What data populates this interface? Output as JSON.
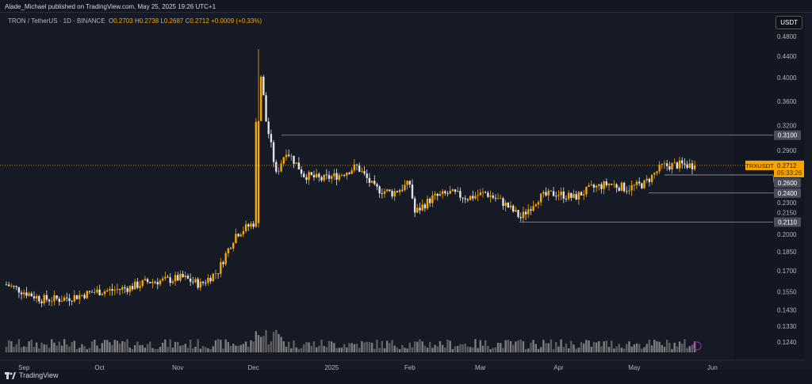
{
  "header": {
    "published": "Alade_Michael published on TradingView.com, May 25, 2025 19:26 UTC+1"
  },
  "legend": {
    "symbol": "TRON / TetherUS · 1D · BINANCE",
    "o_label": "O",
    "o": "0.2703",
    "h_label": "H",
    "h": "0.2738",
    "l_label": "L",
    "l": "0.2687",
    "c_label": "C",
    "c": "0.2712",
    "change": "+0.0009 (+0.33%)"
  },
  "currency": "USDT",
  "price_tag": {
    "symbol": "TRXUSDT",
    "price": "0.2712",
    "countdown": "05:33:26"
  },
  "colors": {
    "up": "#f7a600",
    "down": "#e0e3eb",
    "accent": "#f7a600",
    "level": "#787b86"
  },
  "chart_data": {
    "type": "candlestick",
    "y_ticks": [
      "0.4800",
      "0.4400",
      "0.4000",
      "0.3600",
      "0.3200",
      "0.2900",
      "0.2300",
      "0.2150",
      "0.2000",
      "0.1850",
      "0.1700",
      "0.1550",
      "0.1430",
      "0.1330",
      "0.1240"
    ],
    "x_ticks": [
      "Sep",
      "Oct",
      "Nov",
      "Dec",
      "2025",
      "Feb",
      "Mar",
      "Apr",
      "May",
      "Jun"
    ],
    "levels": [
      {
        "price": 0.31,
        "label": "0.3100"
      },
      {
        "price": 0.26,
        "label": "0.2600"
      },
      {
        "price": 0.24,
        "label": "0.2400"
      },
      {
        "price": 0.211,
        "label": "0.2110"
      }
    ],
    "last_price": 0.2712,
    "close_keypoints": [
      [
        0,
        0.16
      ],
      [
        7,
        0.155
      ],
      [
        14,
        0.15
      ],
      [
        21,
        0.15
      ],
      [
        28,
        0.152
      ],
      [
        35,
        0.155
      ],
      [
        42,
        0.156
      ],
      [
        49,
        0.158
      ],
      [
        56,
        0.162
      ],
      [
        63,
        0.163
      ],
      [
        70,
        0.165
      ],
      [
        77,
        0.16
      ],
      [
        84,
        0.17
      ],
      [
        91,
        0.2
      ],
      [
        98,
        0.21
      ],
      [
        100,
        0.44
      ],
      [
        103,
        0.33
      ],
      [
        107,
        0.26
      ],
      [
        111,
        0.29
      ],
      [
        118,
        0.26
      ],
      [
        125,
        0.255
      ],
      [
        132,
        0.26
      ],
      [
        139,
        0.27
      ],
      [
        146,
        0.245
      ],
      [
        153,
        0.24
      ],
      [
        160,
        0.25
      ],
      [
        162,
        0.22
      ],
      [
        169,
        0.235
      ],
      [
        176,
        0.24
      ],
      [
        183,
        0.235
      ],
      [
        190,
        0.24
      ],
      [
        197,
        0.23
      ],
      [
        204,
        0.215
      ],
      [
        211,
        0.235
      ],
      [
        218,
        0.24
      ],
      [
        225,
        0.235
      ],
      [
        232,
        0.245
      ],
      [
        239,
        0.25
      ],
      [
        246,
        0.245
      ],
      [
        253,
        0.25
      ],
      [
        260,
        0.27
      ],
      [
        267,
        0.272
      ],
      [
        273,
        0.2712
      ]
    ]
  },
  "footer": {
    "brand": "TradingView"
  }
}
